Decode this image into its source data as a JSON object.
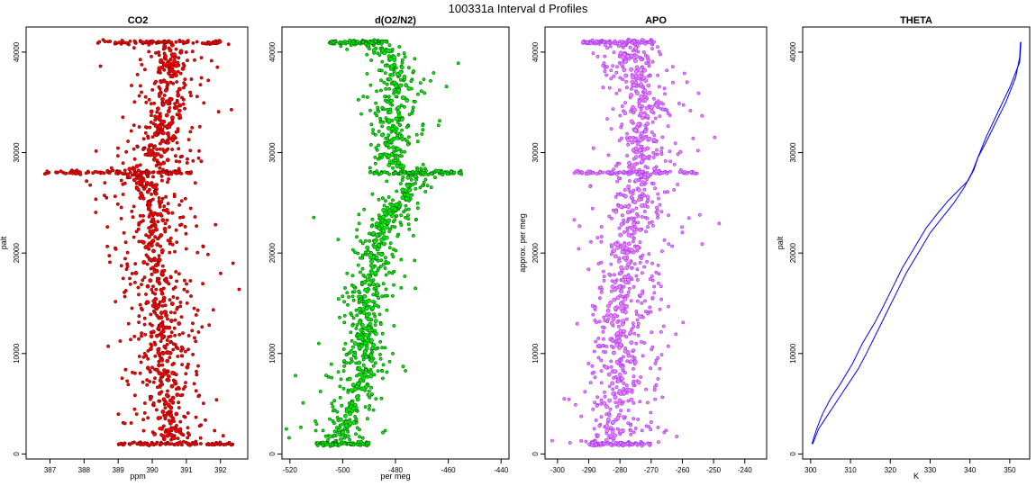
{
  "figure": {
    "title": "100331a   Interval d Profiles"
  },
  "chart_data": [
    {
      "type": "scatter",
      "title": "CO2",
      "xlabel": "ppm",
      "ylabel": "palt",
      "xlim": [
        386.3,
        392.8
      ],
      "ylim": [
        -500,
        42500
      ],
      "x_ticks": [
        387,
        388,
        389,
        390,
        391,
        392
      ],
      "y_ticks": [
        0,
        10000,
        20000,
        30000,
        40000
      ],
      "colors": {
        "fill": "#ff0000",
        "edge": "#7a0000"
      },
      "profile": [
        {
          "y": 1000,
          "x": 390.6
        },
        {
          "y": 3000,
          "x": 390.5
        },
        {
          "y": 5000,
          "x": 390.5
        },
        {
          "y": 8000,
          "x": 390.3
        },
        {
          "y": 11000,
          "x": 390.3
        },
        {
          "y": 15000,
          "x": 390.3
        },
        {
          "y": 19000,
          "x": 390.0
        },
        {
          "y": 23000,
          "x": 390.1
        },
        {
          "y": 26000,
          "x": 389.9
        },
        {
          "y": 27500,
          "x": 389.7
        },
        {
          "y": 28200,
          "x": 389.3
        },
        {
          "y": 29000,
          "x": 390.1
        },
        {
          "y": 32000,
          "x": 390.3
        },
        {
          "y": 35000,
          "x": 390.4
        },
        {
          "y": 38000,
          "x": 390.5
        },
        {
          "y": 41000,
          "x": 390.6
        }
      ],
      "spread": 0.55,
      "bands": [
        {
          "y": 1000,
          "x_min": 389.0,
          "x_max": 392.4
        },
        {
          "y": 28000,
          "x_min": 386.8,
          "x_max": 391.2
        },
        {
          "y": 41000,
          "x_min": 388.4,
          "x_max": 392.0
        }
      ]
    },
    {
      "type": "scatter",
      "title": "d(O2/N2)",
      "xlabel": "per meg",
      "ylabel": "",
      "xlim": [
        -523,
        -437
      ],
      "ylim": [
        -500,
        42500
      ],
      "x_ticks": [
        -520,
        -500,
        -480,
        -460,
        -440
      ],
      "y_ticks": [
        0,
        10000,
        20000,
        30000,
        40000
      ],
      "colors": {
        "fill": "#00ee00",
        "edge": "#006400"
      },
      "profile": [
        {
          "y": 1000,
          "x": -502
        },
        {
          "y": 3000,
          "x": -499
        },
        {
          "y": 6000,
          "x": -495
        },
        {
          "y": 9000,
          "x": -492
        },
        {
          "y": 12000,
          "x": -491
        },
        {
          "y": 15000,
          "x": -491
        },
        {
          "y": 18000,
          "x": -488
        },
        {
          "y": 21000,
          "x": -487
        },
        {
          "y": 24000,
          "x": -483
        },
        {
          "y": 27000,
          "x": -473
        },
        {
          "y": 28200,
          "x": -477
        },
        {
          "y": 29500,
          "x": -482
        },
        {
          "y": 33000,
          "x": -480
        },
        {
          "y": 37000,
          "x": -478
        },
        {
          "y": 40000,
          "x": -483
        },
        {
          "y": 41000,
          "x": -494
        }
      ],
      "spread": 5,
      "bands": [
        {
          "y": 1000,
          "x_min": -510,
          "x_max": -490
        },
        {
          "y": 28000,
          "x_min": -490,
          "x_max": -455
        },
        {
          "y": 41000,
          "x_min": -505,
          "x_max": -483
        }
      ]
    },
    {
      "type": "scatter",
      "title": "APO",
      "xlabel": "",
      "ylabel": "approx. per meg",
      "xlim": [
        -304,
        -233
      ],
      "ylim": [
        -500,
        42500
      ],
      "x_ticks": [
        -300,
        -290,
        -280,
        -270,
        -260,
        -250,
        -240
      ],
      "y_ticks": [
        0,
        10000,
        20000,
        30000,
        40000
      ],
      "colors": {
        "fill": "#ee82ee",
        "edge": "#9b30ff"
      },
      "profile": [
        {
          "y": 1000,
          "x": -283
        },
        {
          "y": 5000,
          "x": -281
        },
        {
          "y": 10000,
          "x": -279
        },
        {
          "y": 15000,
          "x": -280
        },
        {
          "y": 20000,
          "x": -278
        },
        {
          "y": 24000,
          "x": -276
        },
        {
          "y": 27000,
          "x": -274
        },
        {
          "y": 28200,
          "x": -273
        },
        {
          "y": 30000,
          "x": -274
        },
        {
          "y": 35000,
          "x": -273
        },
        {
          "y": 40000,
          "x": -276
        },
        {
          "y": 41000,
          "x": -281
        }
      ],
      "spread": 6,
      "bands": [
        {
          "y": 1000,
          "x_min": -290,
          "x_max": -270
        },
        {
          "y": 28000,
          "x_min": -295,
          "x_max": -255
        },
        {
          "y": 41000,
          "x_min": -292,
          "x_max": -269
        }
      ]
    },
    {
      "type": "line",
      "title": "THETA",
      "xlabel": "K",
      "ylabel": "palt",
      "xlim": [
        298,
        355
      ],
      "ylim": [
        -500,
        42500
      ],
      "x_ticks": [
        300,
        310,
        320,
        330,
        340,
        350
      ],
      "y_ticks": [
        0,
        10000,
        20000,
        30000,
        40000
      ],
      "colors": {
        "line": "#0000ff"
      },
      "series": [
        {
          "x": [
            300.3,
            301.5,
            303,
            305,
            307.5,
            310.5,
            313,
            316,
            318,
            320.5,
            323,
            326,
            329,
            332,
            334.5,
            337,
            339.5,
            341,
            342,
            344,
            347,
            350,
            352.5,
            352.8
          ],
          "y": [
            1000,
            2500,
            4000,
            5500,
            7000,
            9000,
            11000,
            13000,
            14500,
            16500,
            18500,
            20500,
            22500,
            24000,
            25200,
            26200,
            27200,
            28300,
            29500,
            31500,
            34000,
            36500,
            39000,
            41000
          ]
        },
        {
          "x": [
            300.5,
            302,
            304.5,
            307,
            309.5,
            312,
            314,
            316.5,
            319,
            321.5,
            324,
            327,
            330,
            333,
            336,
            338.5,
            340.5,
            342,
            344,
            346.5,
            349,
            351.5,
            352.5,
            352.7
          ],
          "y": [
            1000,
            2500,
            4000,
            5500,
            7000,
            8500,
            10000,
            12000,
            14000,
            16000,
            18000,
            20000,
            22000,
            23500,
            25000,
            26500,
            28000,
            29500,
            31000,
            33000,
            35000,
            37500,
            39500,
            41000
          ]
        }
      ]
    }
  ]
}
